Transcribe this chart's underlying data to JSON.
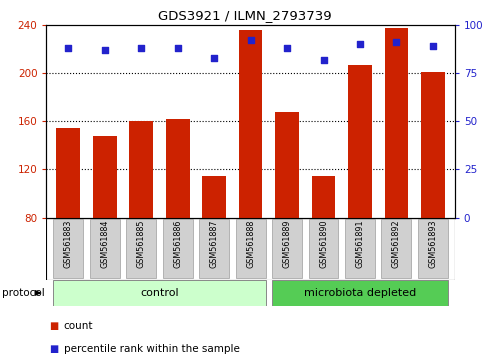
{
  "title": "GDS3921 / ILMN_2793739",
  "samples": [
    "GSM561883",
    "GSM561884",
    "GSM561885",
    "GSM561886",
    "GSM561887",
    "GSM561888",
    "GSM561889",
    "GSM561890",
    "GSM561891",
    "GSM561892",
    "GSM561893"
  ],
  "counts": [
    154,
    148,
    160,
    162,
    115,
    236,
    168,
    115,
    207,
    237,
    201
  ],
  "percentile_ranks": [
    88,
    87,
    88,
    88,
    83,
    92,
    88,
    82,
    90,
    91,
    89
  ],
  "groups": [
    "control",
    "control",
    "control",
    "control",
    "control",
    "control",
    "microbiota depleted",
    "microbiota depleted",
    "microbiota depleted",
    "microbiota depleted",
    "microbiota depleted"
  ],
  "ylim_left": [
    80,
    240
  ],
  "ylim_right": [
    0,
    100
  ],
  "yticks_left": [
    80,
    120,
    160,
    200,
    240
  ],
  "yticks_right": [
    0,
    25,
    50,
    75,
    100
  ],
  "bar_color": "#cc2200",
  "dot_color": "#2222cc",
  "control_color": "#ccffcc",
  "microbiota_color": "#55cc55",
  "bg_color": "#ffffff",
  "grid_color": "#000000",
  "ylabel_left_color": "#cc2200",
  "ylabel_right_color": "#2222cc",
  "legend_count_label": "count",
  "legend_percentile_label": "percentile rank within the sample",
  "protocol_label": "protocol",
  "control_label": "control",
  "microbiota_label": "microbiota depleted",
  "tick_box_color": "#d0d0d0",
  "tick_box_edge_color": "#aaaaaa"
}
